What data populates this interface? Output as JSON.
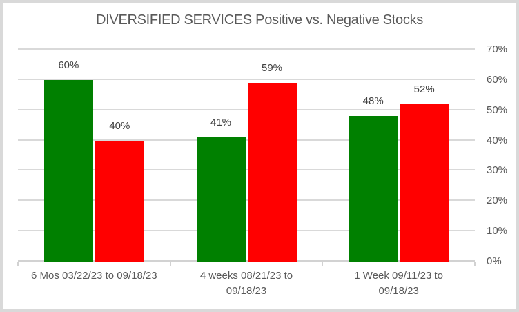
{
  "chart_data": {
    "type": "bar",
    "title": "DIVERSIFIED SERVICES Positive vs. Negative Stocks",
    "categories": [
      "6 Mos 03/22/23 to 09/18/23",
      "4 weeks 08/21/23 to\n09/18/23",
      "1 Week 09/11/23 to\n09/18/23"
    ],
    "series": [
      {
        "name": "Positive",
        "color": "#008000",
        "values": [
          60,
          41,
          48
        ],
        "labels": [
          "60%",
          "41%",
          "48%"
        ]
      },
      {
        "name": "Negative",
        "color": "#FF0000",
        "values": [
          40,
          59,
          52
        ],
        "labels": [
          "40%",
          "59%",
          "52%"
        ]
      }
    ],
    "xlabel": "",
    "ylabel": "",
    "ylim": [
      0,
      70
    ],
    "ytick_interval": 10,
    "ytick_labels": [
      "0%",
      "10%",
      "20%",
      "30%",
      "40%",
      "50%",
      "60%",
      "70%"
    ],
    "yaxis_side": "right",
    "grid": true,
    "legend": "none",
    "data_labels": "outside-end"
  },
  "colors": {
    "positive": "#008000",
    "negative": "#FF0000",
    "gridline": "#D9D9D9",
    "axis_line": "#D2D2D2",
    "border": "#D9D9D9",
    "title_text": "#595959",
    "axis_text": "#595959",
    "data_label_text": "#404040",
    "background": "#FFFFFF"
  }
}
